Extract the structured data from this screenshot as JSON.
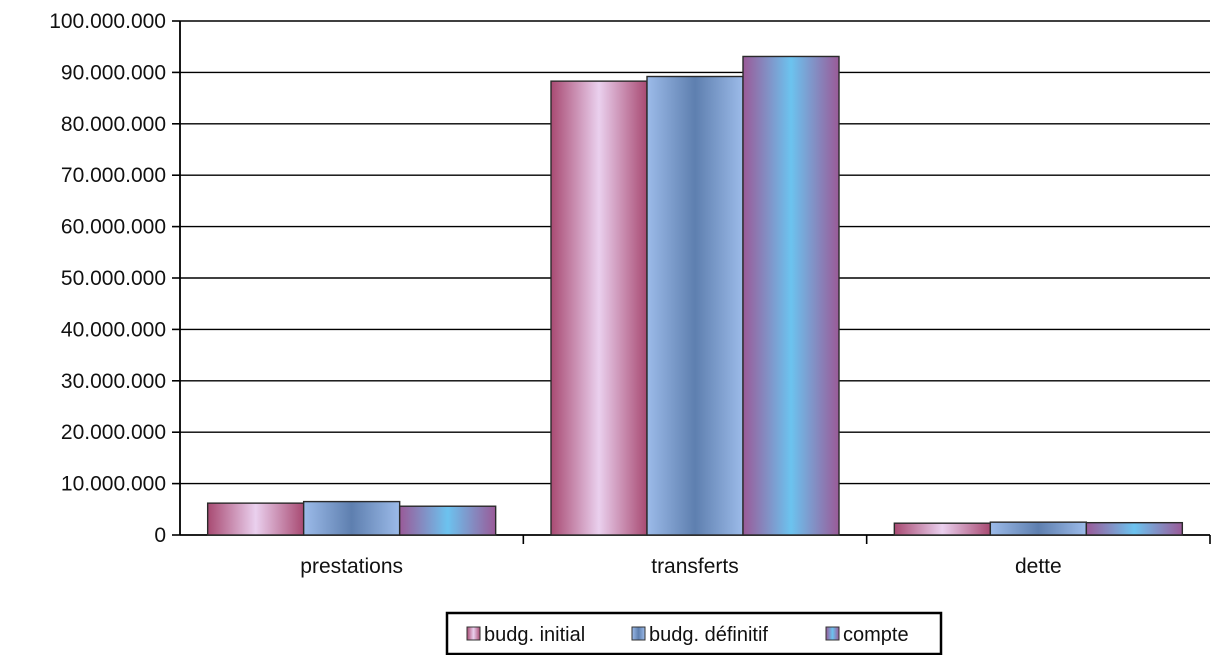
{
  "chart_data": {
    "type": "bar",
    "title": "",
    "xlabel": "",
    "ylabel": "",
    "categories": [
      "prestations",
      "transferts",
      "dette"
    ],
    "series": [
      {
        "name": "budg. initial",
        "values": [
          6200000,
          88300000,
          2300000
        ]
      },
      {
        "name": "budg. définitif",
        "values": [
          6500000,
          89200000,
          2500000
        ]
      },
      {
        "name": "compte",
        "values": [
          5600000,
          93100000,
          2400000
        ]
      }
    ],
    "ylim": [
      0,
      100000000
    ],
    "yticks": [
      0,
      10000000,
      20000000,
      30000000,
      40000000,
      50000000,
      60000000,
      70000000,
      80000000,
      90000000,
      100000000
    ],
    "ytick_labels": [
      "0",
      "10.000.000",
      "20.000.000",
      "30.000.000",
      "40.000.000",
      "50.000.000",
      "60.000.000",
      "70.000.000",
      "80.000.000",
      "90.000.000",
      "100.000.000"
    ],
    "grid": true,
    "legend_position": "bottom"
  },
  "colors": {
    "budg_initial": "#b0587a",
    "budg_initial_light": "#eed3f0",
    "budg_definitif": "#8fb1e6",
    "budg_definitif_dark": "#5f7fae",
    "compte": "#6fc0ee",
    "compte_edge": "#9a5a98"
  }
}
